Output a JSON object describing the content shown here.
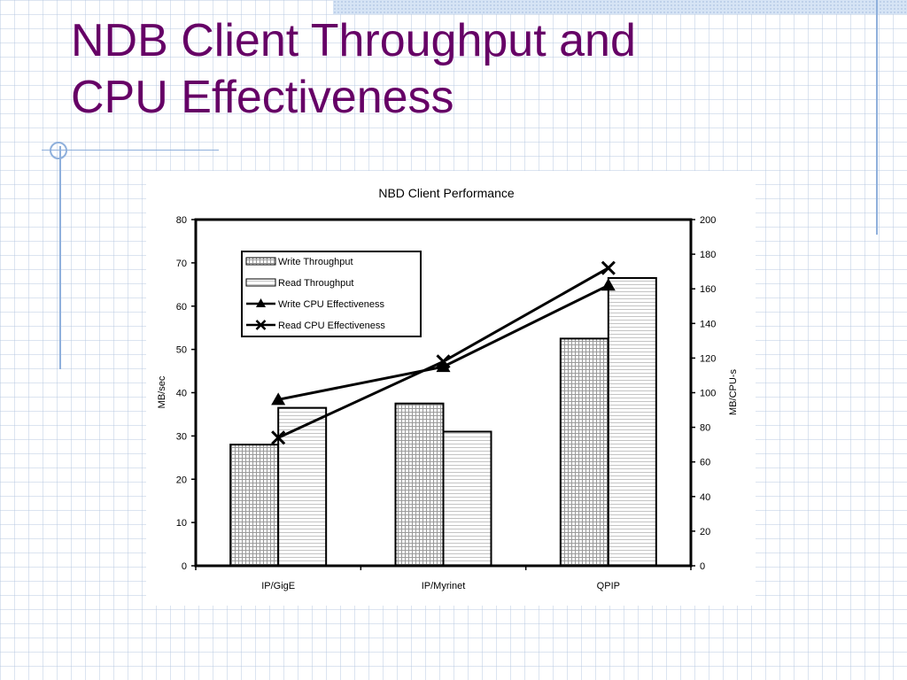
{
  "slide": {
    "title_line1": "NDB Client Throughput and",
    "title_line2": "CPU Effectiveness"
  },
  "colors": {
    "title": "#660066",
    "accent_lines": "#8fb0dc",
    "bars_pattern": "#9a9a9a"
  },
  "chart_data": {
    "type": "bar",
    "title": "NBD Client Performance",
    "categories": [
      "IP/GigE",
      "IP/Myrinet",
      "QPIP"
    ],
    "ylabel": "MB/sec",
    "ylim": [
      0,
      80
    ],
    "yticks": [
      "0",
      "10",
      "20",
      "30",
      "40",
      "50",
      "60",
      "70",
      "80"
    ],
    "y2label": "MB/CPU-s",
    "y2lim": [
      0,
      200
    ],
    "y2ticks": [
      "0",
      "20",
      "40",
      "60",
      "80",
      "100",
      "120",
      "140",
      "160",
      "180",
      "200"
    ],
    "series": [
      {
        "name": "Write Throughput",
        "type": "bar",
        "axis": "left",
        "values": [
          28,
          37.5,
          52.5
        ]
      },
      {
        "name": "Read Throughput",
        "type": "bar",
        "axis": "left",
        "values": [
          36.5,
          31,
          66.5
        ]
      },
      {
        "name": "Write CPU Effectiveness",
        "type": "line",
        "axis": "right",
        "marker": "triangle",
        "values": [
          96,
          115,
          162
        ]
      },
      {
        "name": "Read CPU Effectiveness",
        "type": "line",
        "axis": "right",
        "marker": "x",
        "values": [
          74,
          118,
          172
        ]
      }
    ],
    "legend": "top-left",
    "grid": false
  }
}
